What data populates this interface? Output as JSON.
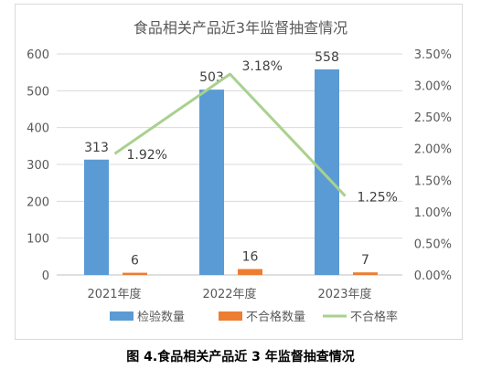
{
  "chart_data": {
    "type": "bar",
    "title": "食品相关产品近3年监督抽查情况",
    "categories": [
      "2021年度",
      "2022年度",
      "2023年度"
    ],
    "series": [
      {
        "name": "检验数量",
        "kind": "bar",
        "axis": "left",
        "color": "#5b9bd5",
        "values": [
          313,
          503,
          558
        ],
        "labels": [
          "313",
          "503",
          "558"
        ]
      },
      {
        "name": "不合格数量",
        "kind": "bar",
        "axis": "left",
        "color": "#ed7d31",
        "values": [
          6,
          16,
          7
        ],
        "labels": [
          "6",
          "16",
          "7"
        ]
      },
      {
        "name": "不合格率",
        "kind": "line",
        "axis": "right",
        "color": "#a9d18e",
        "values": [
          1.92,
          3.18,
          1.25
        ],
        "labels": [
          "1.92%",
          "3.18%",
          "1.25%"
        ]
      }
    ],
    "y_left": {
      "min": 0,
      "max": 600,
      "ticks": [
        "0",
        "100",
        "200",
        "300",
        "400",
        "500",
        "600"
      ]
    },
    "y_right": {
      "min": 0,
      "max": 3.5,
      "ticks": [
        "0.00%",
        "0.50%",
        "1.00%",
        "1.50%",
        "2.00%",
        "2.50%",
        "3.00%",
        "3.50%"
      ]
    },
    "grid": true,
    "legend": "bottom"
  },
  "caption": "图 4.食品相关产品近 3 年监督抽查情况"
}
